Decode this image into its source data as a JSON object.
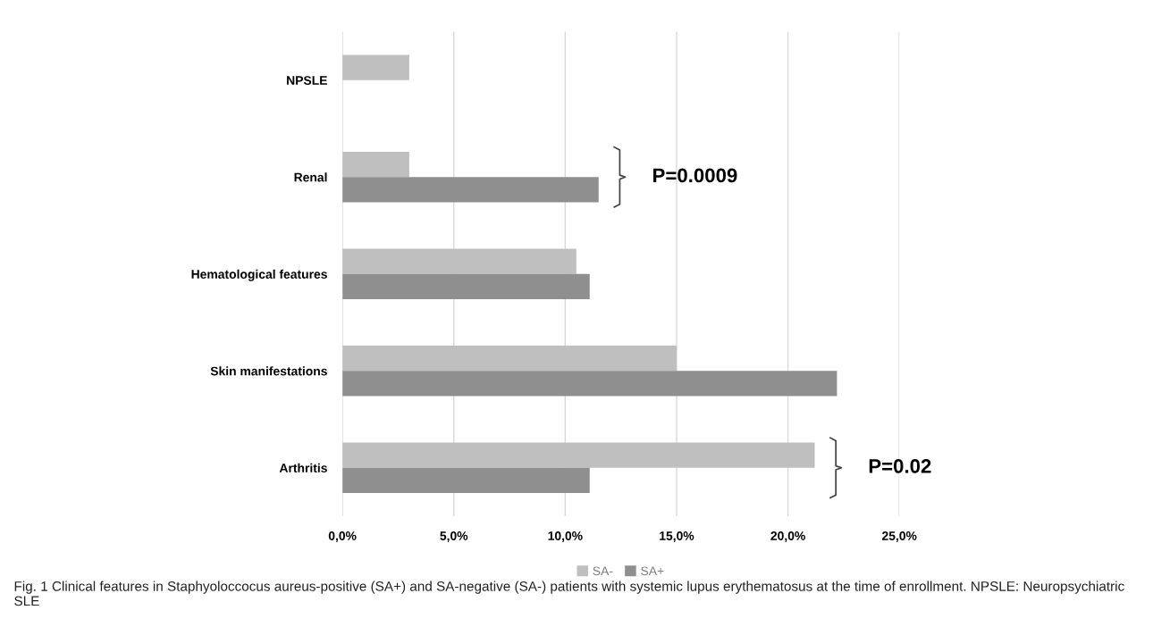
{
  "chart_data": {
    "type": "bar",
    "orientation": "horizontal",
    "categories": [
      "NPSLE",
      "Renal",
      "Hematological features",
      "Skin manifestations",
      "Arthritis"
    ],
    "series": [
      {
        "name": "SA-",
        "color": "#bfbfbf",
        "values": [
          3.0,
          3.0,
          10.5,
          15.0,
          21.2
        ]
      },
      {
        "name": "SA+",
        "color": "#8f8f8f",
        "values": [
          0,
          11.5,
          11.1,
          22.2,
          11.1
        ]
      }
    ],
    "xlim": [
      0,
      25
    ],
    "xticks": [
      {
        "value": 0,
        "label": "0,0%"
      },
      {
        "value": 5,
        "label": "5,0%"
      },
      {
        "value": 10,
        "label": "10,0%"
      },
      {
        "value": 15,
        "label": "15,0%"
      },
      {
        "value": 20,
        "label": "20,0%"
      },
      {
        "value": 25,
        "label": "25,0%"
      }
    ],
    "grid": "x",
    "legend": "bottom",
    "annotations": [
      "P=0.0009",
      "P=0.02",
      "Fig. 1 Clinical features in Staphyoloccocus aureus-positive (SA+) and SA-negative (SA-) patients with systemic lupus erythematosus at the time of enrollment. NPSLE: Neuropsychiatric SLE"
    ]
  }
}
